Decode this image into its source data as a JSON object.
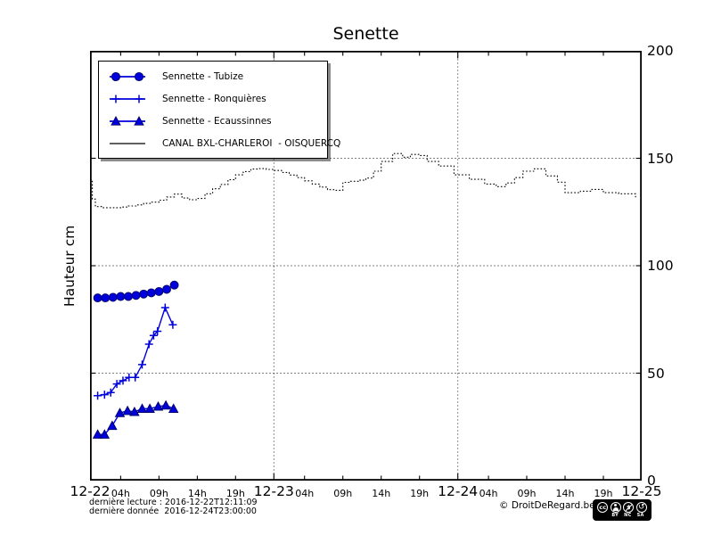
{
  "title": "Senette",
  "y_axis": {
    "label": "Hauteur cm",
    "ticks": [
      0,
      50,
      100,
      150,
      200
    ],
    "range": [
      0,
      200
    ]
  },
  "x_axis": {
    "dates": [
      {
        "label": "12-22",
        "hour": 0
      },
      {
        "label": "12-23",
        "hour": 24
      },
      {
        "label": "12-24",
        "hour": 48
      },
      {
        "label": "12-25",
        "hour": 72
      }
    ],
    "hour_labels": [
      {
        "label": "04h",
        "hour": 4
      },
      {
        "label": "09h",
        "hour": 9
      },
      {
        "label": "14h",
        "hour": 14
      },
      {
        "label": "19h",
        "hour": 19
      },
      {
        "label": "04h",
        "hour": 28
      },
      {
        "label": "09h",
        "hour": 33
      },
      {
        "label": "14h",
        "hour": 38
      },
      {
        "label": "19h",
        "hour": 43
      },
      {
        "label": "04h",
        "hour": 52
      },
      {
        "label": "09h",
        "hour": 57
      },
      {
        "label": "14h",
        "hour": 62
      },
      {
        "label": "19h",
        "hour": 67
      }
    ],
    "range_hours": [
      0,
      72
    ]
  },
  "legend": {
    "entries": [
      {
        "label": "Sennette - Tubize"
      },
      {
        "label": "Sennette - Ronquières"
      },
      {
        "label": "Sennette - Ecaussinnes"
      },
      {
        "label": "CANAL BXL-CHARLEROI  - OISQUERCQ"
      }
    ]
  },
  "footer": {
    "line1": "dernière lecture : 2016-12-22T12:11:09",
    "line2": "dernière donnée  2016-12-24T23:00:00",
    "copyright": "© DroitDeRegard.be",
    "cc_badge": {
      "logo_text": "cc",
      "labels": [
        "BY",
        "NC",
        "SA"
      ],
      "nc_symbol": "$",
      "sa_symbol": "↺"
    }
  },
  "chart_data": {
    "type": "line",
    "title": "Senette",
    "ylabel": "Hauteur cm",
    "x_unit": "hours since 2016-12-22 00:00",
    "xlim": [
      0,
      72
    ],
    "ylim": [
      0,
      200
    ],
    "grid": {
      "x_hours": [
        24,
        48
      ],
      "y_values": [
        50,
        100,
        150
      ]
    },
    "series": [
      {
        "name": "Sennette - Tubize",
        "marker": "circle",
        "color": "#0000dd",
        "edge": "#000066",
        "style": "solid",
        "x": [
          1,
          2,
          3,
          4,
          5,
          6,
          7,
          8,
          9,
          10,
          11
        ],
        "y": [
          85,
          85,
          85.3,
          85.7,
          85.7,
          86.2,
          86.8,
          87.4,
          88,
          89,
          91
        ]
      },
      {
        "name": "Sennette - Ronquières",
        "marker": "plus",
        "color": "#0000dd",
        "edge": "#0000dd",
        "style": "solid",
        "x": [
          1,
          1.9,
          2.7,
          3.5,
          4.3,
          5.1,
          5.9,
          6.8,
          7.7,
          8.3,
          8.8,
          9.8,
          10.8
        ],
        "y": [
          39.5,
          40,
          41,
          45,
          46.5,
          48,
          48,
          54,
          63.5,
          67.5,
          69.5,
          80.5,
          72.5
        ]
      },
      {
        "name": "Sennette - Ecaussinnes",
        "marker": "triangle",
        "color": "#0000dd",
        "edge": "#000066",
        "style": "solid",
        "x": [
          1,
          1.9,
          2.9,
          3.9,
          4.9,
          5.8,
          6.8,
          7.8,
          8.9,
          9.9,
          10.9
        ],
        "y": [
          21.5,
          21.5,
          25.5,
          31.5,
          32.5,
          32,
          33.5,
          33.5,
          34.5,
          35,
          33.5
        ]
      },
      {
        "name": "CANAL BXL-CHARLEROI  - OISQUERCQ",
        "marker": "none",
        "color": "#000000",
        "edge": "#000000",
        "style": "step-dotted",
        "x": [
          0,
          0.3,
          0.7,
          1.5,
          3,
          4,
          5,
          6,
          7,
          8,
          9,
          10,
          11,
          12,
          13,
          14,
          15,
          16,
          17,
          18,
          19,
          20,
          21,
          22,
          23,
          24,
          25,
          26,
          27,
          28,
          29,
          30,
          31,
          32,
          33,
          34,
          35,
          36,
          37,
          38,
          39.5,
          40.8,
          41.8,
          43,
          44,
          45.5,
          47.5,
          49.5,
          51.5,
          53,
          54.3,
          55.4,
          56.5,
          58,
          59.5,
          61,
          62,
          64,
          65.5,
          67,
          69,
          71.2
        ],
        "y": [
          140,
          131,
          127.5,
          127,
          127,
          127.3,
          127.8,
          128.3,
          129,
          129.6,
          130.5,
          132,
          133.3,
          131.5,
          130.7,
          131.3,
          133.5,
          135.8,
          137.8,
          140,
          142.3,
          143.8,
          145,
          145.2,
          144.8,
          144.3,
          143.4,
          142.2,
          141,
          139.5,
          138,
          136.6,
          135.4,
          135.1,
          138.8,
          139.3,
          139.8,
          140.8,
          144,
          148.5,
          152.2,
          150.5,
          151.8,
          151.3,
          148.5,
          146.4,
          142.3,
          140.2,
          138,
          136.8,
          138.5,
          141,
          144,
          145.1,
          141.8,
          138.9,
          134,
          134.7,
          135.5,
          134,
          133.5,
          131.8
        ]
      }
    ]
  }
}
